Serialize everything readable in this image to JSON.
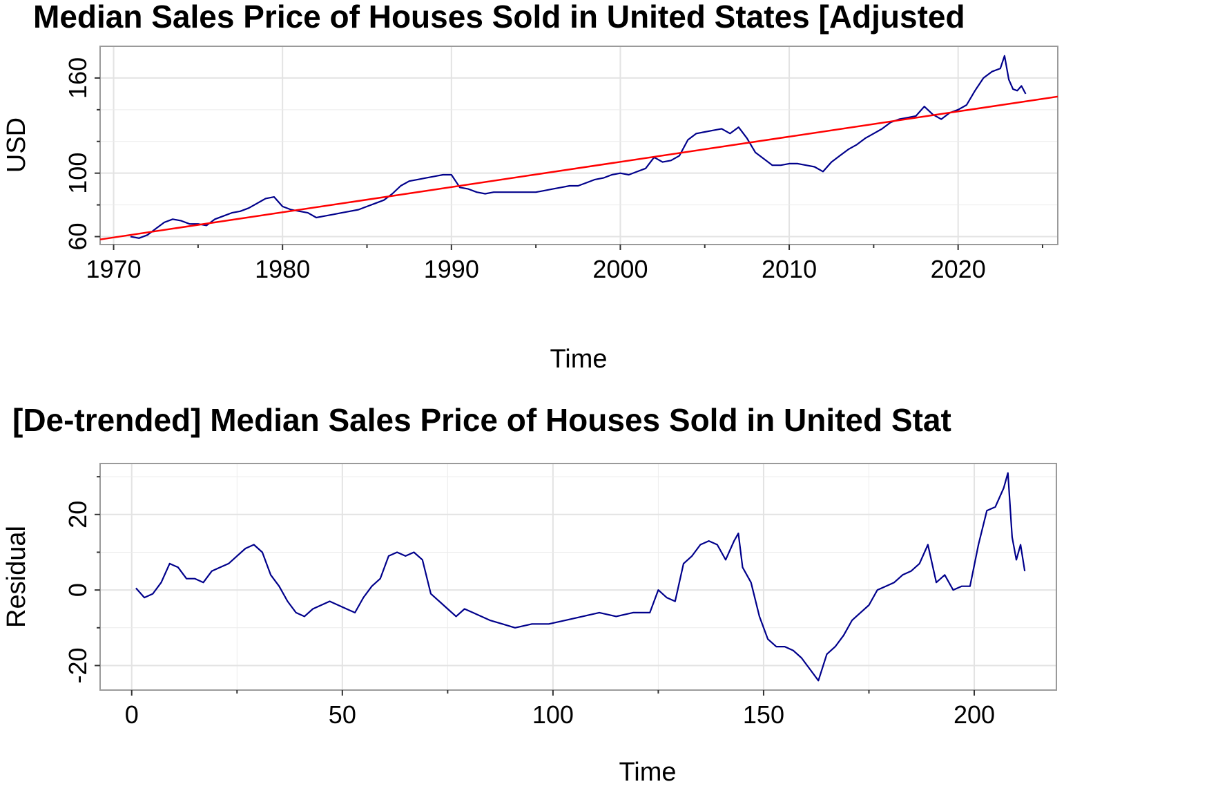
{
  "chart_data": [
    {
      "type": "line",
      "title": "Median Sales Price of Houses Sold in United States [Adjusted",
      "xlabel": "Time",
      "ylabel": "USD",
      "xlim": [
        1969.2,
        2025.9
      ],
      "ylim": [
        55,
        180
      ],
      "x_ticks": [
        1970,
        1980,
        1990,
        2000,
        2010,
        2020
      ],
      "x_tick_labels": [
        "1970",
        "1980",
        "1990",
        "2000",
        "2010",
        "2020"
      ],
      "y_ticks": [
        60,
        100,
        160
      ],
      "y_tick_labels": [
        "60",
        "100",
        "160"
      ],
      "y_minor_ticks": [
        80,
        120,
        140
      ],
      "grid": true,
      "series": [
        {
          "role": "data",
          "color": "#00008B",
          "x": [
            1971.0,
            1971.5,
            1972.0,
            1972.5,
            1973.0,
            1973.5,
            1974.0,
            1974.5,
            1975.0,
            1975.5,
            1976.0,
            1976.5,
            1977.0,
            1977.5,
            1978.0,
            1978.5,
            1979.0,
            1979.5,
            1980.0,
            1980.5,
            1981.0,
            1981.5,
            1982.0,
            1982.5,
            1983.0,
            1983.5,
            1984.0,
            1984.5,
            1985.0,
            1985.5,
            1986.0,
            1986.5,
            1987.0,
            1987.5,
            1988.0,
            1988.5,
            1989.0,
            1989.5,
            1990.0,
            1990.5,
            1991.0,
            1991.5,
            1992.0,
            1992.5,
            1993.0,
            1993.5,
            1994.0,
            1994.5,
            1995.0,
            1995.5,
            1996.0,
            1996.5,
            1997.0,
            1997.5,
            1998.0,
            1998.5,
            1999.0,
            1999.5,
            2000.0,
            2000.5,
            2001.0,
            2001.5,
            2002.0,
            2002.5,
            2003.0,
            2003.5,
            2004.0,
            2004.5,
            2005.0,
            2005.5,
            2006.0,
            2006.5,
            2007.0,
            2007.5,
            2008.0,
            2008.5,
            2009.0,
            2009.5,
            2010.0,
            2010.5,
            2011.0,
            2011.5,
            2012.0,
            2012.5,
            2013.0,
            2013.5,
            2014.0,
            2014.5,
            2015.0,
            2015.5,
            2016.0,
            2016.5,
            2017.0,
            2017.5,
            2018.0,
            2018.5,
            2019.0,
            2019.5,
            2020.0,
            2020.5,
            2021.0,
            2021.5,
            2022.0,
            2022.5,
            2022.75,
            2023.0,
            2023.25,
            2023.5,
            2023.75,
            2024.0
          ],
          "y": [
            60,
            59,
            61,
            65,
            69,
            71,
            70,
            68,
            68,
            67,
            71,
            73,
            75,
            76,
            78,
            81,
            84,
            85,
            79,
            77,
            76,
            75,
            72,
            73,
            74,
            75,
            76,
            77,
            79,
            81,
            83,
            87,
            92,
            95,
            96,
            97,
            98,
            99,
            99,
            91,
            90,
            88,
            87,
            88,
            88,
            88,
            88,
            88,
            88,
            89,
            90,
            91,
            92,
            92,
            94,
            96,
            97,
            99,
            100,
            99,
            101,
            103,
            110,
            107,
            108,
            111,
            121,
            125,
            126,
            127,
            128,
            125,
            129,
            122,
            113,
            109,
            105,
            105,
            106,
            106,
            105,
            104,
            101,
            107,
            111,
            115,
            118,
            122,
            125,
            128,
            132,
            134,
            135,
            136,
            142,
            137,
            134,
            138,
            140,
            143,
            152,
            160,
            164,
            166,
            174,
            159,
            153,
            152,
            155,
            150
          ]
        },
        {
          "role": "trend",
          "color": "#FF0000",
          "x": [
            1969.2,
            2025.9
          ],
          "y": [
            58.2,
            148.3
          ]
        }
      ]
    },
    {
      "type": "line",
      "title": "[De-trended] Median Sales Price of Houses Sold in United Stat",
      "xlabel": "Time",
      "ylabel": "Residual",
      "xlim": [
        -7.5,
        219.5
      ],
      "ylim": [
        -26.5,
        33.5
      ],
      "x_ticks": [
        0,
        50,
        100,
        150,
        200
      ],
      "x_tick_labels": [
        "0",
        "50",
        "100",
        "150",
        "200"
      ],
      "x_minor_ticks": [
        25,
        75,
        125,
        175
      ],
      "y_ticks": [
        -20,
        0,
        20
      ],
      "y_tick_labels": [
        "-20",
        "0",
        "20"
      ],
      "y_minor_ticks": [
        -10,
        10,
        30
      ],
      "grid": true,
      "series": [
        {
          "role": "data",
          "color": "#00008B",
          "x": [
            1,
            3,
            5,
            7,
            9,
            11,
            13,
            15,
            17,
            19,
            21,
            23,
            25,
            27,
            29,
            31,
            33,
            35,
            37,
            39,
            41,
            43,
            45,
            47,
            49,
            51,
            53,
            55,
            57,
            59,
            61,
            63,
            65,
            67,
            69,
            71,
            73,
            75,
            77,
            79,
            81,
            85,
            88,
            91,
            95,
            99,
            103,
            107,
            111,
            115,
            119,
            123,
            125,
            127,
            129,
            131,
            133,
            135,
            137,
            139,
            141,
            143,
            144,
            145,
            147,
            149,
            151,
            153,
            155,
            157,
            159,
            161,
            163,
            165,
            167,
            169,
            171,
            173,
            175,
            177,
            179,
            181,
            183,
            185,
            187,
            189,
            191,
            193,
            195,
            197,
            199,
            201,
            203,
            205,
            207,
            208,
            209,
            210,
            211,
            212
          ],
          "y": [
            0.5,
            -2,
            -1,
            2,
            7,
            6,
            3,
            3,
            2,
            5,
            6,
            7,
            9,
            11,
            12,
            10,
            4,
            1,
            -3,
            -6,
            -7,
            -5,
            -4,
            -3,
            -4,
            -5,
            -6,
            -2,
            1,
            3,
            9,
            10,
            9,
            10,
            8,
            -1,
            -3,
            -5,
            -7,
            -5,
            -6,
            -8,
            -9,
            -10,
            -9,
            -9,
            -8,
            -7,
            -6,
            -7,
            -6,
            -6,
            0,
            -2,
            -3,
            7,
            9,
            12,
            13,
            12,
            8,
            13,
            15,
            6,
            2,
            -7,
            -13,
            -15,
            -15,
            -16,
            -18,
            -21,
            -24,
            -17,
            -15,
            -12,
            -8,
            -6,
            -4,
            0,
            1,
            2,
            4,
            5,
            7,
            12,
            2,
            4,
            0,
            1,
            1,
            12,
            21,
            22,
            27,
            31,
            14,
            8,
            12,
            5
          ]
        }
      ]
    }
  ]
}
